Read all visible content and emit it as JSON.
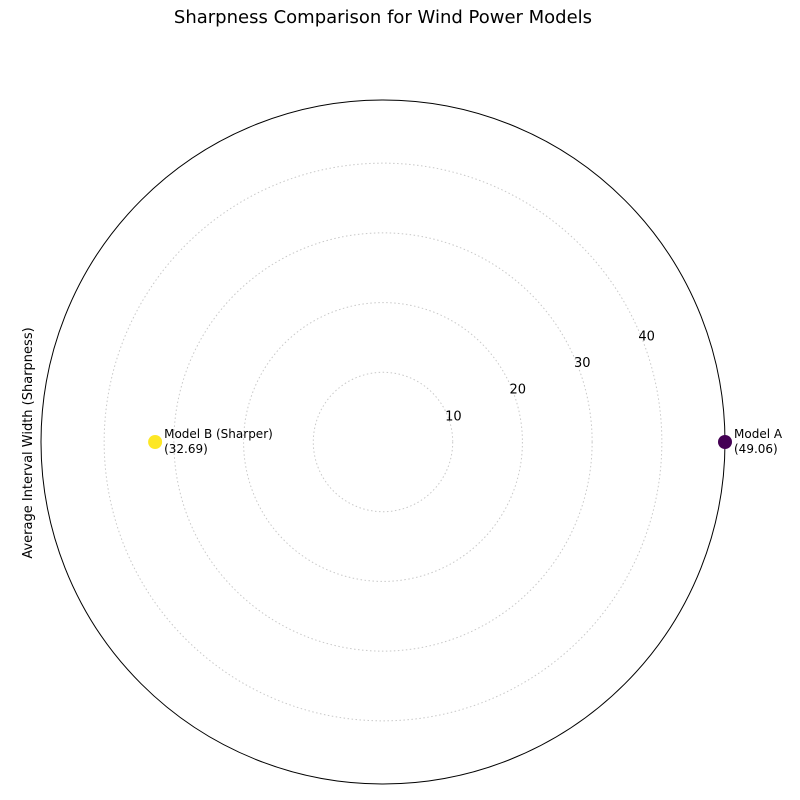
{
  "chart_data": {
    "type": "scatter",
    "projection": "polar",
    "title": "Sharpness Comparison for Wind Power Models",
    "ylabel": "Average Interval Width (Sharpness)",
    "rlim": [
      0,
      49.06
    ],
    "rticks": [
      10,
      20,
      30,
      40
    ],
    "rtick_labels": [
      "10",
      "20",
      "30",
      "40"
    ],
    "grid": true,
    "points": [
      {
        "name": "Model A",
        "theta_deg": 0,
        "r": 49.06,
        "color": "#440154",
        "label_line1": "Model A",
        "label_line2": "(49.06)"
      },
      {
        "name": "Model B",
        "theta_deg": 180,
        "r": 32.69,
        "color": "#fde725",
        "label_line1": "Model B (Sharper)",
        "label_line2": "(32.69)"
      }
    ]
  }
}
